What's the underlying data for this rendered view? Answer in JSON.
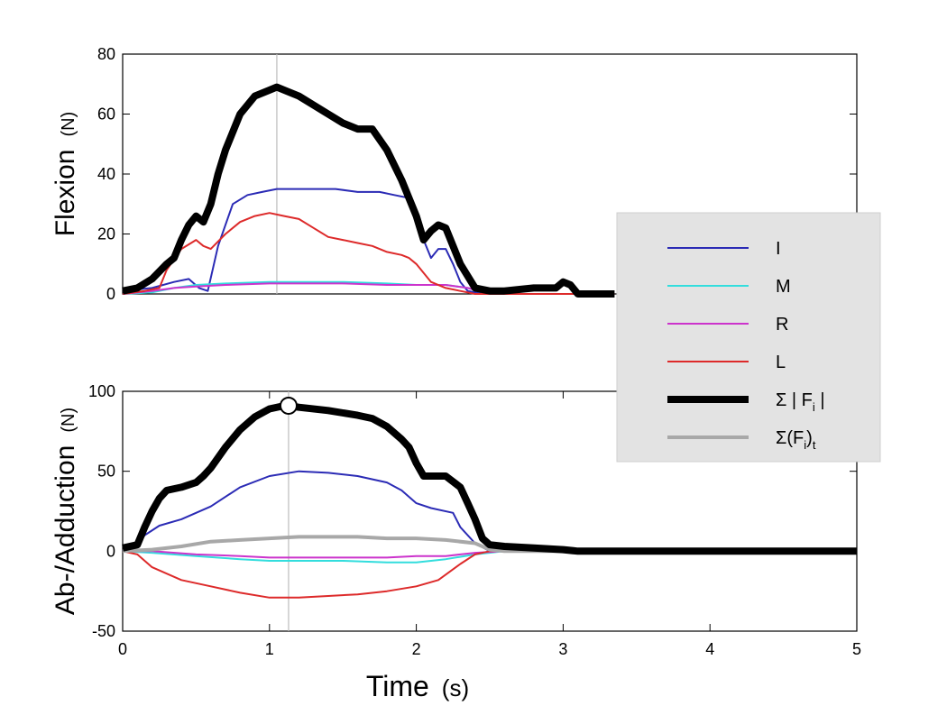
{
  "chart_data": [
    {
      "type": "line",
      "panel": "top",
      "ylabel": "Flexion",
      "yunit": "(N)",
      "xlabel": "",
      "xlim": [
        0,
        5
      ],
      "ylim": [
        0,
        80
      ],
      "yticks": [
        0,
        20,
        40,
        60,
        80
      ],
      "xticks": [],
      "vline_x": 1.05,
      "series": [
        {
          "name": "I",
          "color": "#2b2bb5",
          "width": 2,
          "x": [
            0,
            0.2,
            0.35,
            0.45,
            0.52,
            0.58,
            0.65,
            0.75,
            0.85,
            0.95,
            1.05,
            1.15,
            1.3,
            1.45,
            1.6,
            1.75,
            1.85,
            1.95,
            2.0,
            2.05,
            2.1,
            2.15,
            2.2,
            2.25,
            2.3,
            2.35,
            2.45,
            2.6,
            3.35
          ],
          "y": [
            1,
            2,
            4,
            5,
            2,
            1,
            16,
            30,
            33,
            34,
            35,
            35,
            35,
            35,
            34,
            34,
            33,
            32,
            28,
            18,
            12,
            15,
            15,
            10,
            4,
            1,
            0,
            0,
            0
          ]
        },
        {
          "name": "M",
          "color": "#33dddd",
          "width": 2,
          "x": [
            0,
            0.2,
            0.35,
            0.5,
            0.7,
            1.0,
            1.2,
            1.5,
            1.8,
            2.0,
            2.2,
            2.35,
            2.5,
            3.35
          ],
          "y": [
            0,
            0.5,
            2,
            3,
            3.5,
            4,
            4,
            4,
            3.5,
            3,
            3,
            2,
            0,
            0
          ]
        },
        {
          "name": "R",
          "color": "#cc33cc",
          "width": 2,
          "x": [
            0,
            0.2,
            0.35,
            0.5,
            0.7,
            1.0,
            1.2,
            1.5,
            1.8,
            2.0,
            2.2,
            2.35,
            2.5,
            3.35
          ],
          "y": [
            0,
            1,
            2,
            2.5,
            3,
            3.5,
            3.5,
            3.5,
            3,
            3,
            3,
            2,
            0,
            0
          ]
        },
        {
          "name": "L",
          "color": "#dd2a2a",
          "width": 2,
          "x": [
            0,
            0.15,
            0.25,
            0.3,
            0.4,
            0.5,
            0.55,
            0.6,
            0.7,
            0.8,
            0.9,
            1.0,
            1.1,
            1.2,
            1.3,
            1.4,
            1.5,
            1.6,
            1.7,
            1.8,
            1.9,
            1.95,
            2.0,
            2.1,
            2.2,
            2.3,
            2.4,
            3.35
          ],
          "y": [
            0,
            1,
            2,
            8,
            15,
            18,
            16,
            15,
            20,
            24,
            26,
            27,
            26,
            25,
            22,
            19,
            18,
            17,
            16,
            14,
            13,
            12,
            10,
            4,
            2,
            1,
            0,
            0
          ]
        },
        {
          "name": "Σ|Fi|",
          "color": "#000000",
          "width": 8,
          "x": [
            0,
            0.1,
            0.2,
            0.3,
            0.35,
            0.4,
            0.45,
            0.5,
            0.55,
            0.6,
            0.65,
            0.7,
            0.8,
            0.9,
            1.0,
            1.05,
            1.1,
            1.2,
            1.3,
            1.4,
            1.5,
            1.6,
            1.7,
            1.8,
            1.9,
            2.0,
            2.05,
            2.1,
            2.15,
            2.2,
            2.3,
            2.4,
            2.5,
            2.6,
            2.8,
            2.95,
            3.0,
            3.05,
            3.1,
            3.35
          ],
          "y": [
            1,
            2,
            5,
            10,
            12,
            18,
            23,
            26,
            24,
            30,
            40,
            48,
            60,
            66,
            68,
            69,
            68,
            66,
            63,
            60,
            57,
            55,
            55,
            48,
            38,
            26,
            18,
            21,
            23,
            22,
            10,
            2,
            1,
            1,
            2,
            2,
            4,
            3,
            0,
            0
          ]
        }
      ]
    },
    {
      "type": "line",
      "panel": "bottom",
      "ylabel": "Ab-/Adduction",
      "yunit": "(N)",
      "xlabel": "Time",
      "xunit": "(s)",
      "xlim": [
        0,
        5
      ],
      "ylim": [
        -50,
        100
      ],
      "yticks": [
        -50,
        0,
        50,
        100
      ],
      "xticks": [
        0,
        1,
        2,
        3,
        4,
        5
      ],
      "vline_x": 1.13,
      "marker": {
        "x": 1.13,
        "y": 91
      },
      "series": [
        {
          "name": "I",
          "color": "#2b2bb5",
          "width": 2,
          "x": [
            0,
            0.1,
            0.15,
            0.25,
            0.4,
            0.6,
            0.8,
            1.0,
            1.2,
            1.4,
            1.6,
            1.8,
            1.9,
            2.0,
            2.1,
            2.25,
            2.3,
            2.4,
            2.5,
            5.0
          ],
          "y": [
            0,
            3,
            10,
            16,
            20,
            28,
            40,
            47,
            50,
            49,
            47,
            43,
            38,
            30,
            27,
            24,
            15,
            5,
            0,
            0
          ]
        },
        {
          "name": "M",
          "color": "#33dddd",
          "width": 2,
          "x": [
            0,
            0.2,
            0.5,
            0.8,
            1.0,
            1.2,
            1.5,
            1.8,
            2.0,
            2.2,
            2.4,
            2.6,
            5.0
          ],
          "y": [
            0,
            -1,
            -3,
            -5,
            -6,
            -6,
            -6,
            -7,
            -7,
            -5,
            -2,
            0,
            0
          ]
        },
        {
          "name": "R",
          "color": "#cc33cc",
          "width": 2,
          "x": [
            0,
            0.2,
            0.5,
            0.8,
            1.0,
            1.2,
            1.5,
            1.8,
            2.0,
            2.2,
            2.4,
            2.6,
            5.0
          ],
          "y": [
            0,
            0,
            -2,
            -3,
            -4,
            -4,
            -4,
            -4,
            -3,
            -3,
            -1,
            0,
            0
          ]
        },
        {
          "name": "L",
          "color": "#dd2a2a",
          "width": 2,
          "x": [
            0,
            0.1,
            0.2,
            0.4,
            0.6,
            0.8,
            1.0,
            1.2,
            1.4,
            1.6,
            1.8,
            2.0,
            2.15,
            2.3,
            2.4,
            2.5,
            2.6,
            5.0
          ],
          "y": [
            0,
            -2,
            -10,
            -18,
            -22,
            -26,
            -29,
            -29,
            -28,
            -27,
            -25,
            -22,
            -18,
            -8,
            -2,
            0,
            0,
            0
          ]
        },
        {
          "name": "Σ(Fi)t",
          "color": "#a8a8a8",
          "width": 4,
          "x": [
            0,
            0.2,
            0.4,
            0.6,
            0.8,
            1.0,
            1.2,
            1.4,
            1.6,
            1.8,
            2.0,
            2.2,
            2.4,
            2.5,
            2.6,
            5.0
          ],
          "y": [
            0,
            1,
            3,
            6,
            7,
            8,
            9,
            9,
            9,
            8,
            8,
            7,
            5,
            1,
            0,
            0
          ]
        },
        {
          "name": "Σ|Fi|",
          "color": "#000000",
          "width": 8,
          "x": [
            0,
            0.1,
            0.15,
            0.2,
            0.25,
            0.3,
            0.4,
            0.5,
            0.55,
            0.6,
            0.7,
            0.8,
            0.9,
            1.0,
            1.1,
            1.13,
            1.2,
            1.4,
            1.6,
            1.7,
            1.8,
            1.9,
            1.95,
            2.0,
            2.05,
            2.1,
            2.2,
            2.3,
            2.35,
            2.4,
            2.45,
            2.5,
            2.6,
            2.8,
            3.0,
            3.1,
            5.0
          ],
          "y": [
            2,
            4,
            15,
            25,
            33,
            38,
            40,
            43,
            47,
            52,
            65,
            76,
            84,
            89,
            91,
            91,
            90,
            88,
            85,
            83,
            78,
            70,
            65,
            55,
            47,
            47,
            47,
            40,
            30,
            20,
            8,
            4,
            3,
            2,
            1,
            0,
            0
          ]
        }
      ]
    }
  ],
  "legend": {
    "position": "right",
    "background": "#e3e3e3",
    "entries": [
      {
        "label": "I",
        "color": "#2b2bb5",
        "width": 2
      },
      {
        "label": "M",
        "color": "#33dddd",
        "width": 2
      },
      {
        "label": "R",
        "color": "#cc33cc",
        "width": 2
      },
      {
        "label": "L",
        "color": "#dd2a2a",
        "width": 2
      },
      {
        "label": "Σ|Fi|",
        "color": "#000000",
        "width": 8
      },
      {
        "label": "Σ(Fi)t",
        "color": "#a8a8a8",
        "width": 4
      }
    ]
  }
}
